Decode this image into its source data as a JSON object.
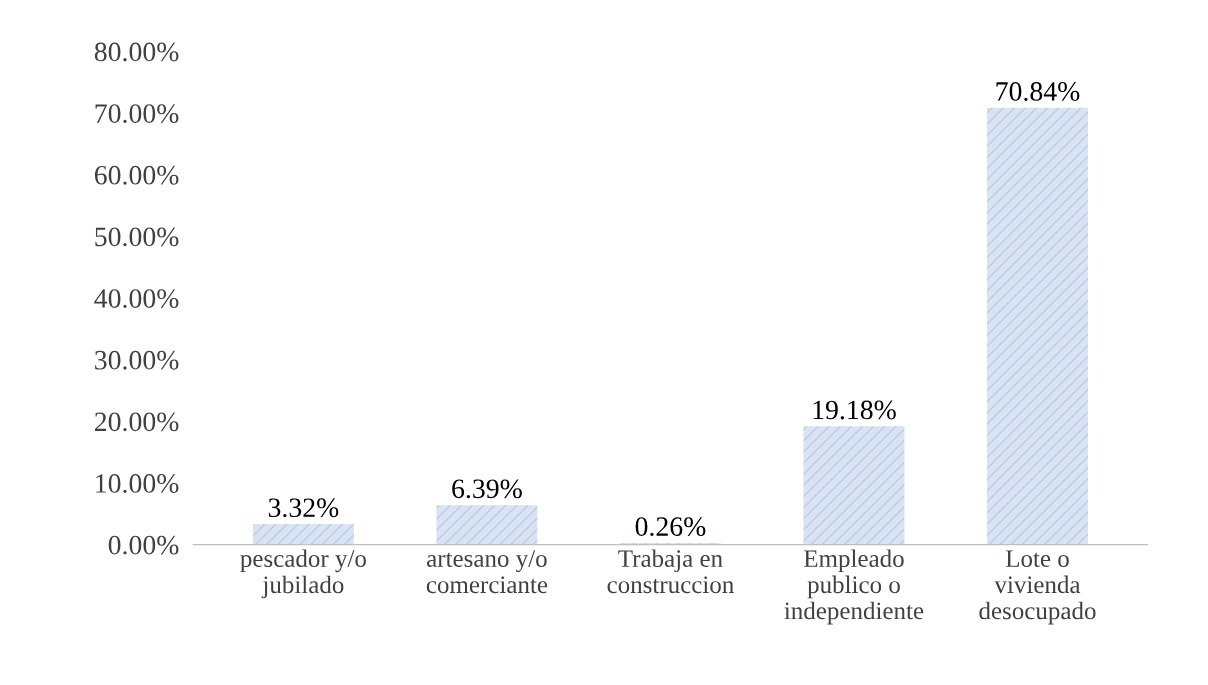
{
  "chart_data": {
    "type": "bar",
    "categories": [
      "pescador y/o\njubilado",
      "artesano y/o\ncomerciante",
      "Trabaja en\nconstruccion",
      "Empleado\npublico o\nindependiente",
      "Lote o\nvivienda\ndesocupado"
    ],
    "values": [
      3.32,
      6.39,
      0.26,
      19.18,
      70.84
    ],
    "value_labels": [
      "3.32%",
      "6.39%",
      "0.26%",
      "19.18%",
      "70.84%"
    ],
    "color": "#dae3f3",
    "ylim": [
      0,
      80
    ],
    "yticks": [
      {
        "value": 0,
        "label": "0.00%"
      },
      {
        "value": 10,
        "label": "10.00%"
      },
      {
        "value": 20,
        "label": "20.00%"
      },
      {
        "value": 30,
        "label": "30.00%"
      },
      {
        "value": 40,
        "label": "40.00%"
      },
      {
        "value": 50,
        "label": "50.00%"
      },
      {
        "value": 60,
        "label": "60.00%"
      },
      {
        "value": 70,
        "label": "70.00%"
      },
      {
        "value": 80,
        "label": "80.00%"
      }
    ],
    "grid": false
  }
}
